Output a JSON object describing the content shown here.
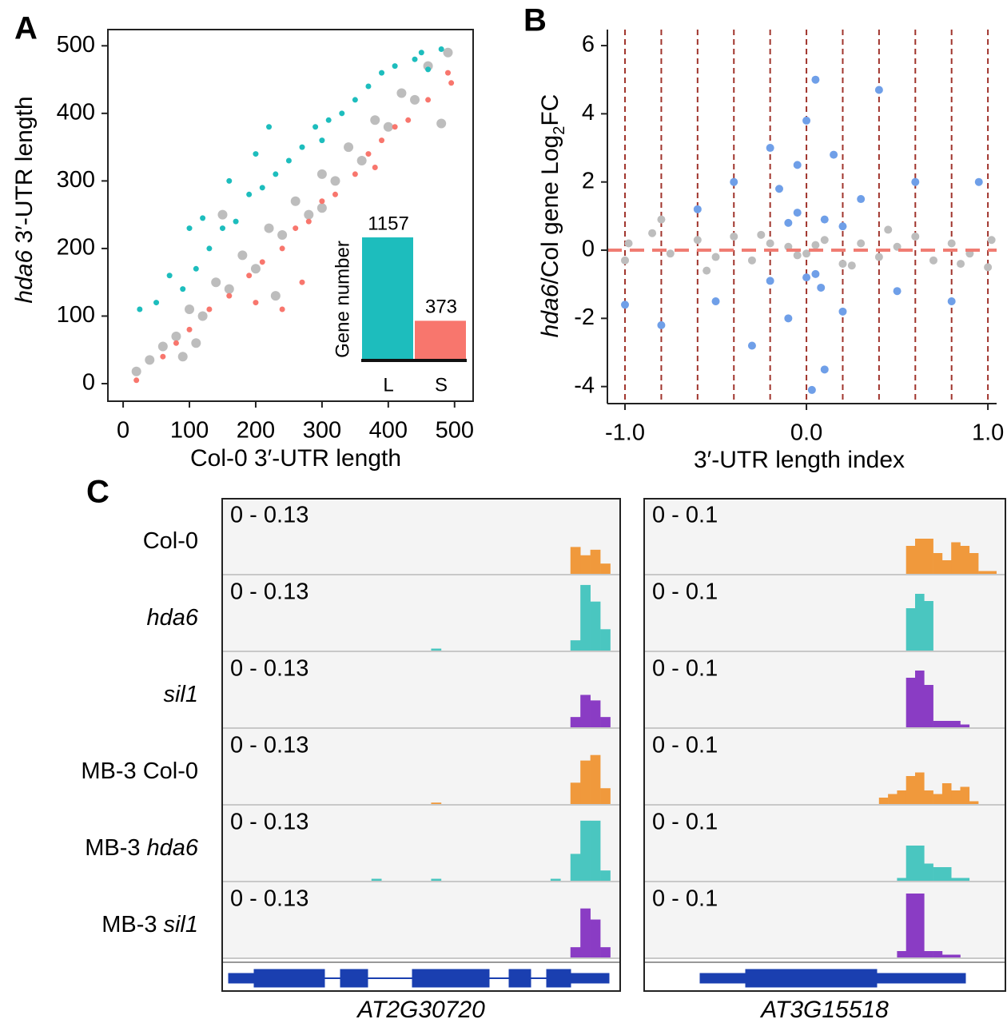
{
  "chart_data": [
    {
      "type": "scatter",
      "panel": "A",
      "xlabel": "Col-0 3′-UTR length",
      "ylabel_parts": [
        {
          "text": "hda6",
          "style": "italic"
        },
        {
          "text": " 3′-UTR length"
        }
      ],
      "xlim": [
        -23,
        528
      ],
      "ylim": [
        -26,
        524
      ],
      "xticks": [
        0,
        100,
        200,
        300,
        400,
        500
      ],
      "yticks": [
        0,
        100,
        200,
        300,
        400,
        500
      ],
      "frame": true,
      "series": [
        {
          "color": "#bdbdbd",
          "size": 6,
          "x": [
            20,
            40,
            60,
            80,
            100,
            120,
            140,
            160,
            180,
            200,
            220,
            240,
            260,
            280,
            300,
            320,
            340,
            360,
            380,
            400,
            420,
            440,
            460,
            480,
            490,
            90,
            110,
            230,
            300,
            150
          ],
          "values": [
            18,
            35,
            55,
            70,
            110,
            100,
            150,
            140,
            190,
            170,
            230,
            220,
            270,
            250,
            310,
            300,
            350,
            330,
            390,
            380,
            430,
            420,
            470,
            385,
            490,
            40,
            60,
            130,
            260,
            250
          ]
        },
        {
          "color": "#1dbdbd",
          "size": 3.5,
          "x": [
            25,
            50,
            70,
            90,
            110,
            130,
            150,
            170,
            190,
            210,
            230,
            250,
            270,
            290,
            310,
            330,
            350,
            370,
            390,
            410,
            450,
            460,
            220,
            200,
            100,
            160,
            440,
            480,
            120,
            300
          ],
          "values": [
            110,
            120,
            160,
            140,
            170,
            200,
            230,
            240,
            280,
            290,
            310,
            330,
            350,
            380,
            390,
            400,
            420,
            440,
            460,
            470,
            490,
            465,
            380,
            340,
            230,
            300,
            480,
            495,
            245,
            360
          ]
        },
        {
          "color": "#f8766d",
          "size": 3.5,
          "x": [
            20,
            60,
            80,
            100,
            130,
            160,
            190,
            210,
            240,
            260,
            280,
            300,
            320,
            350,
            370,
            390,
            410,
            430,
            460,
            490,
            495,
            380,
            270,
            240,
            200
          ],
          "values": [
            5,
            40,
            60,
            80,
            110,
            130,
            160,
            180,
            200,
            230,
            240,
            270,
            280,
            310,
            340,
            360,
            380,
            390,
            420,
            460,
            445,
            320,
            150,
            110,
            120
          ]
        }
      ]
    },
    {
      "type": "bar",
      "ylabel": "Gene number",
      "categories": [
        "L",
        "S"
      ],
      "values": [
        1157,
        373
      ],
      "colors": [
        "#1dbdbd",
        "#f8766d"
      ],
      "ylim": [
        0,
        1300
      ]
    },
    {
      "type": "scatter",
      "panel": "B",
      "xlabel": "3′-UTR length index",
      "ylabel_parts": [
        {
          "text": "hda6",
          "style": "italic"
        },
        {
          "text": "/Col gene Log"
        },
        {
          "text": "2",
          "style": "sub"
        },
        {
          "text": "FC"
        }
      ],
      "xlim": [
        -1.097,
        1.048
      ],
      "ylim": [
        -4.5,
        6.47
      ],
      "xticks": [
        {
          "value": -1,
          "label": "-1.0"
        },
        {
          "value": 0,
          "label": "0.0"
        },
        {
          "value": 1,
          "label": "1.0"
        }
      ],
      "yticks": [
        -4,
        -2,
        0,
        2,
        4,
        6
      ],
      "frame": false,
      "vlines": [
        -1,
        -0.8,
        -0.6,
        -0.4,
        -0.2,
        0,
        0.2,
        0.4,
        0.6,
        0.8,
        1
      ],
      "vline_color": "#a0342c",
      "hline": 0,
      "hline_color": "#f07c72",
      "series": [
        {
          "color": "#bdbdbd",
          "size": 5,
          "x": [
            -1.0,
            -0.98,
            -0.8,
            -0.75,
            -0.6,
            -0.5,
            -0.4,
            -0.3,
            -0.2,
            -0.1,
            0,
            0.1,
            0.2,
            0.3,
            0.4,
            0.5,
            0.6,
            0.7,
            0.8,
            0.9,
            1.0,
            1.02,
            -0.55,
            0.45,
            -0.85,
            0.85,
            -0.25,
            0.25,
            0.05,
            -0.05
          ],
          "values": [
            -0.3,
            0.2,
            0.9,
            -0.1,
            0.3,
            -0.2,
            0.4,
            -0.3,
            0.2,
            0.1,
            -0.1,
            0.3,
            -0.4,
            0.2,
            -0.2,
            0.1,
            0.4,
            -0.3,
            0.2,
            -0.1,
            -0.5,
            0.3,
            -0.6,
            0.6,
            0.5,
            -0.4,
            0.45,
            -0.45,
            0.15,
            -0.15
          ]
        },
        {
          "color": "#6f9fe8",
          "size": 5,
          "x": [
            -1.0,
            -0.8,
            -0.6,
            -0.5,
            -0.4,
            -0.3,
            -0.2,
            -0.15,
            -0.1,
            -0.05,
            0,
            0.03,
            0.05,
            0.1,
            0.15,
            0.2,
            0.3,
            0.4,
            0.5,
            0.6,
            0.8,
            0.95,
            -0.1,
            0,
            0.1,
            -0.2,
            0.2,
            0.05,
            -0.05,
            0.08
          ],
          "values": [
            -1.6,
            -2.2,
            1.2,
            -1.5,
            2.0,
            -2.8,
            3.0,
            1.8,
            -2.0,
            2.5,
            3.8,
            -4.1,
            5.0,
            -3.5,
            2.8,
            -1.8,
            1.5,
            4.7,
            -1.2,
            2.0,
            -1.5,
            2.0,
            0.8,
            -0.8,
            0.9,
            -0.9,
            0.7,
            -0.7,
            1.1,
            -1.1
          ]
        }
      ]
    },
    {
      "type": "tracks",
      "panel": "C",
      "rows": [
        {
          "name": "Col-0",
          "color": "#f0993c"
        },
        {
          "name": "hda6",
          "italic": true,
          "color": "#4ac6c0"
        },
        {
          "name": "sil1",
          "italic": true,
          "color": "#8a3cc4"
        },
        {
          "prefix": "MB-3",
          "name": "Col-0",
          "color": "#f0993c"
        },
        {
          "prefix": "MB-3",
          "name": "hda6",
          "italic": true,
          "color": "#4ac6c0"
        },
        {
          "prefix": "MB-3",
          "name": "sil1",
          "italic": true,
          "color": "#8a3cc4"
        }
      ],
      "panels": [
        {
          "gene": "AT2G30720",
          "range_label": "0 - 0.13",
          "ylim": [
            0,
            0.13
          ],
          "tracks": [
            [
              0,
              0,
              0,
              0,
              0,
              0,
              0,
              0,
              0,
              0,
              0,
              0,
              0,
              0,
              0,
              0,
              0,
              0,
              0,
              0,
              0,
              0,
              0,
              0,
              0,
              0,
              0,
              0,
              0,
              0,
              0,
              0,
              0,
              0,
              0,
              0.05,
              0.035,
              0.045,
              0.02,
              0
            ],
            [
              0,
              0,
              0,
              0,
              0,
              0,
              0,
              0,
              0,
              0,
              0,
              0,
              0,
              0,
              0,
              0,
              0,
              0,
              0,
              0,
              0,
              0.005,
              0,
              0,
              0,
              0,
              0,
              0,
              0,
              0,
              0,
              0,
              0,
              0,
              0,
              0.02,
              0.12,
              0.09,
              0.04,
              0
            ],
            [
              0,
              0,
              0,
              0,
              0,
              0,
              0,
              0,
              0,
              0,
              0,
              0,
              0,
              0,
              0,
              0,
              0,
              0,
              0,
              0,
              0,
              0,
              0,
              0,
              0,
              0,
              0,
              0,
              0,
              0,
              0,
              0,
              0,
              0,
              0,
              0.02,
              0.06,
              0.05,
              0.02,
              0
            ],
            [
              0,
              0,
              0,
              0,
              0,
              0,
              0,
              0,
              0,
              0,
              0,
              0,
              0,
              0,
              0,
              0,
              0,
              0,
              0,
              0,
              0,
              0.004,
              0,
              0,
              0,
              0,
              0,
              0,
              0,
              0,
              0,
              0,
              0,
              0,
              0,
              0.04,
              0.08,
              0.09,
              0.03,
              0
            ],
            [
              0,
              0,
              0,
              0,
              0,
              0,
              0,
              0,
              0,
              0,
              0,
              0,
              0,
              0,
              0,
              0.005,
              0,
              0,
              0,
              0,
              0,
              0.005,
              0,
              0,
              0,
              0,
              0,
              0,
              0,
              0,
              0,
              0,
              0,
              0.005,
              0,
              0.05,
              0.11,
              0.11,
              0.02,
              0
            ],
            [
              0,
              0,
              0,
              0,
              0,
              0,
              0,
              0,
              0,
              0,
              0,
              0,
              0,
              0,
              0,
              0,
              0,
              0,
              0,
              0,
              0,
              0,
              0,
              0,
              0,
              0,
              0,
              0,
              0,
              0,
              0,
              0,
              0,
              0,
              0,
              0.02,
              0.09,
              0.07,
              0.02,
              0
            ]
          ]
        },
        {
          "gene": "AT3G15518",
          "range_label": "0 - 0.1",
          "ylim": [
            0,
            0.1
          ],
          "tracks": [
            [
              0,
              0,
              0,
              0,
              0,
              0,
              0,
              0,
              0,
              0,
              0,
              0,
              0,
              0,
              0,
              0,
              0,
              0,
              0,
              0,
              0,
              0,
              0,
              0,
              0,
              0,
              0,
              0,
              0,
              0.04,
              0.05,
              0.05,
              0.03,
              0.02,
              0.045,
              0.04,
              0.03,
              0.005,
              0.005,
              0
            ],
            [
              0,
              0,
              0,
              0,
              0,
              0,
              0,
              0,
              0,
              0,
              0,
              0,
              0,
              0,
              0,
              0,
              0,
              0,
              0,
              0,
              0,
              0,
              0,
              0,
              0,
              0,
              0,
              0,
              0,
              0.06,
              0.08,
              0.07,
              0,
              0,
              0,
              0,
              0,
              0,
              0,
              0
            ],
            [
              0,
              0,
              0,
              0,
              0,
              0,
              0,
              0,
              0,
              0,
              0,
              0,
              0,
              0,
              0,
              0,
              0,
              0,
              0,
              0,
              0,
              0,
              0,
              0,
              0,
              0,
              0,
              0,
              0,
              0.07,
              0.08,
              0.06,
              0.01,
              0.01,
              0.01,
              0.005,
              0,
              0,
              0,
              0
            ],
            [
              0,
              0,
              0,
              0,
              0,
              0,
              0,
              0,
              0,
              0,
              0,
              0,
              0,
              0,
              0,
              0,
              0,
              0,
              0,
              0,
              0,
              0,
              0,
              0,
              0,
              0,
              0.01,
              0.015,
              0.02,
              0.04,
              0.045,
              0.02,
              0.015,
              0.03,
              0.02,
              0.025,
              0.005,
              0,
              0,
              0
            ],
            [
              0,
              0,
              0,
              0,
              0,
              0,
              0,
              0,
              0,
              0,
              0,
              0,
              0,
              0,
              0,
              0,
              0,
              0,
              0,
              0,
              0,
              0,
              0,
              0,
              0,
              0,
              0,
              0,
              0.005,
              0.05,
              0.05,
              0.025,
              0.02,
              0.02,
              0.005,
              0.005,
              0,
              0,
              0,
              0
            ],
            [
              0,
              0,
              0,
              0,
              0,
              0,
              0,
              0,
              0,
              0,
              0,
              0,
              0,
              0,
              0,
              0,
              0,
              0,
              0,
              0,
              0,
              0,
              0,
              0,
              0,
              0,
              0,
              0,
              0.01,
              0.09,
              0.09,
              0.01,
              0.01,
              0.005,
              0.005,
              0,
              0,
              0,
              0,
              0
            ]
          ]
        }
      ]
    }
  ]
}
